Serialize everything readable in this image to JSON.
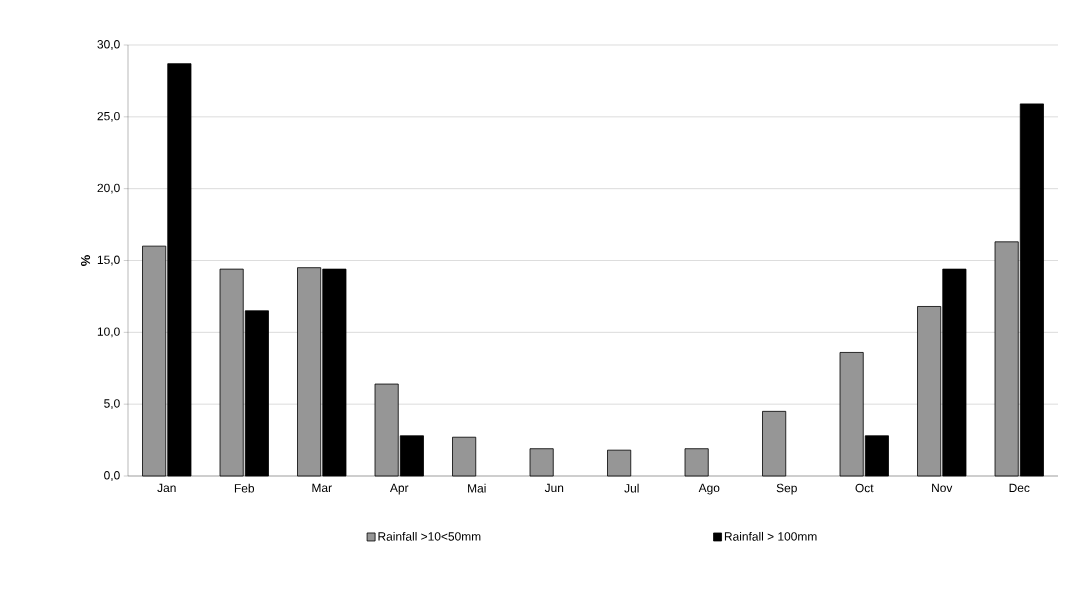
{
  "chart_data": {
    "type": "bar",
    "ylabel": "%",
    "categories": [
      "Jan",
      "Feb",
      "Mar",
      "Apr",
      "Mai",
      "Jun",
      "Jul",
      "Ago",
      "Sep",
      "Oct",
      "Nov",
      "Dec"
    ],
    "series": [
      {
        "name": "Rainfall >10<50mm",
        "color": "#969696",
        "values": [
          16.0,
          14.4,
          14.5,
          6.4,
          2.7,
          1.9,
          1.8,
          1.9,
          4.5,
          8.6,
          11.8,
          16.3
        ]
      },
      {
        "name": "Rainfall > 100mm",
        "color": "#000000",
        "values": [
          28.7,
          11.5,
          14.4,
          2.8,
          null,
          null,
          null,
          null,
          null,
          2.8,
          14.4,
          25.9
        ]
      }
    ],
    "ylim": [
      0,
      30
    ],
    "yticks": [
      {
        "value": 0,
        "label": "0,0"
      },
      {
        "value": 5,
        "label": "5,0"
      },
      {
        "value": 10,
        "label": "10,0"
      },
      {
        "value": 15,
        "label": "15,0"
      },
      {
        "value": 20,
        "label": "20,0"
      },
      {
        "value": 25,
        "label": "25,0"
      },
      {
        "value": 30,
        "label": "30,0"
      }
    ],
    "grid": "y",
    "legend": "bottom"
  }
}
